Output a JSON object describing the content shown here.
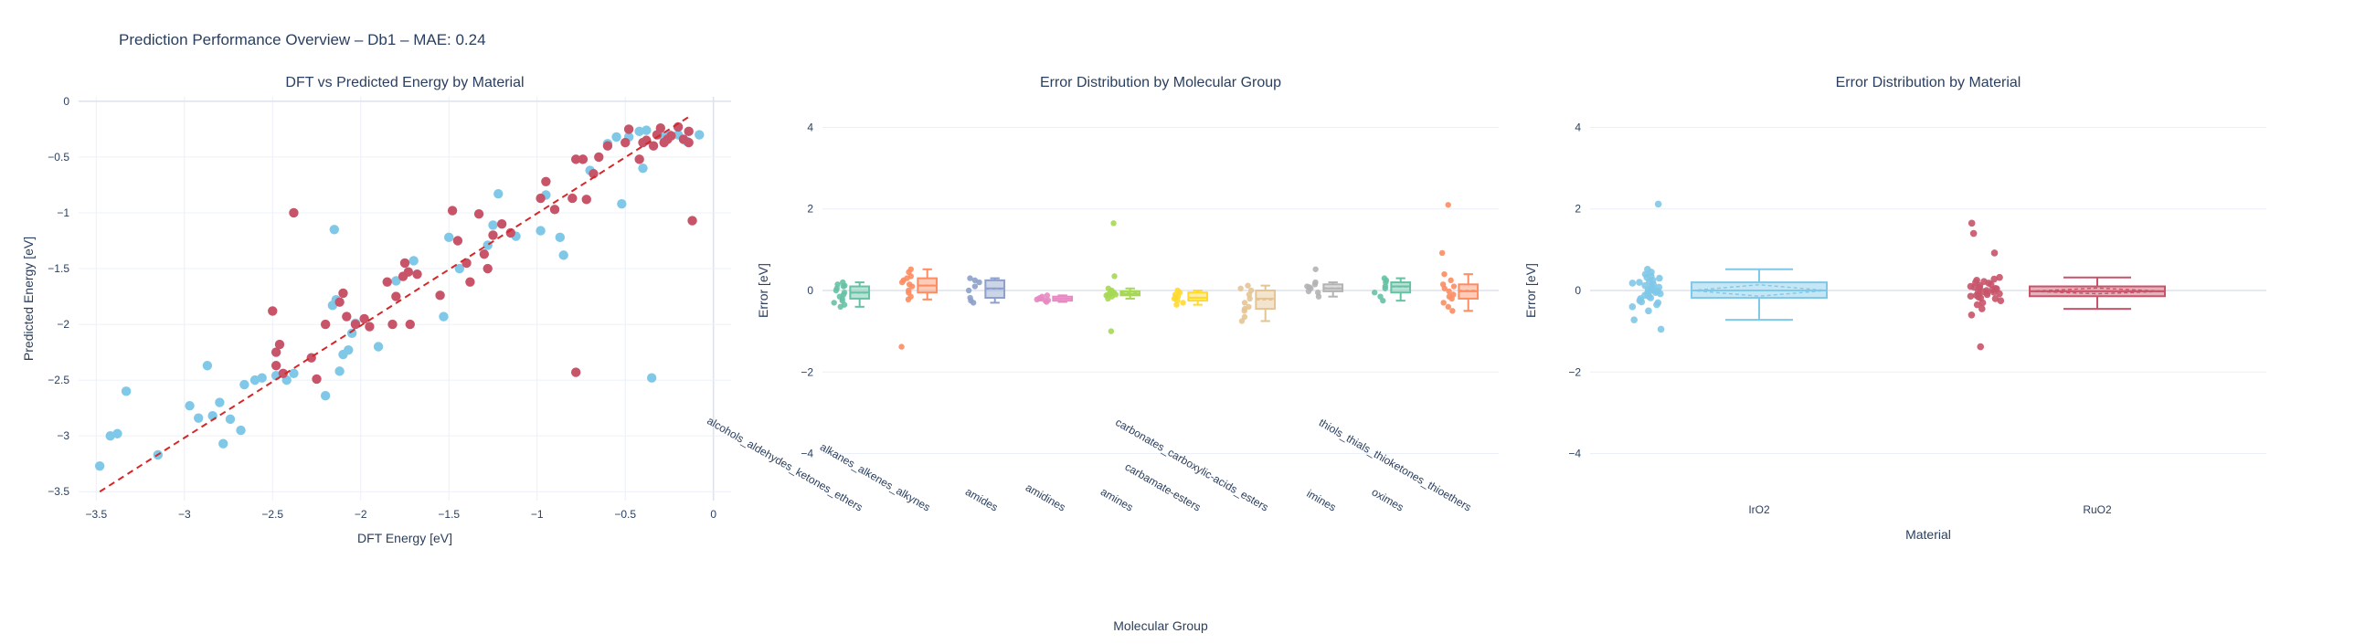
{
  "page_title": "Prediction Performance Overview – Db1 – MAE: 0.24",
  "chart_data": [
    {
      "id": "parity",
      "type": "scatter",
      "title": "DFT vs Predicted Energy by Material",
      "xlabel": "DFT Energy [eV]",
      "ylabel": "Predicted Energy [eV]",
      "xlim": [
        -3.6,
        0.1
      ],
      "ylim": [
        -3.58,
        0.04
      ],
      "xticks": [
        -3.5,
        -3,
        -2.5,
        -2,
        -1.5,
        -1,
        -0.5,
        0
      ],
      "xtick_labels": [
        "−3.5",
        "−3",
        "−2.5",
        "−2",
        "−1.5",
        "−1",
        "−0.5",
        "0"
      ],
      "yticks": [
        -3.5,
        -3,
        -2.5,
        -2,
        -1.5,
        -1,
        -0.5,
        0
      ],
      "ytick_labels": [
        "−3.5",
        "−3",
        "−2.5",
        "−2",
        "−1.5",
        "−1",
        "−0.5",
        "0"
      ],
      "grid": true,
      "reference_line": {
        "x": [
          -3.48,
          -0.13
        ],
        "y": [
          -3.5,
          -0.13
        ],
        "color": "#d62728",
        "style": "dashed"
      },
      "series": [
        {
          "color": "#7fc8e8",
          "points": [
            [
              -3.48,
              -3.27
            ],
            [
              -3.42,
              -3.0
            ],
            [
              -3.38,
              -2.98
            ],
            [
              -3.33,
              -2.6
            ],
            [
              -3.15,
              -3.17
            ],
            [
              -2.97,
              -2.73
            ],
            [
              -2.92,
              -2.84
            ],
            [
              -2.87,
              -2.37
            ],
            [
              -2.84,
              -2.82
            ],
            [
              -2.8,
              -2.7
            ],
            [
              -2.78,
              -3.07
            ],
            [
              -2.74,
              -2.85
            ],
            [
              -2.68,
              -2.95
            ],
            [
              -2.66,
              -2.54
            ],
            [
              -2.6,
              -2.5
            ],
            [
              -2.56,
              -2.48
            ],
            [
              -2.48,
              -2.46
            ],
            [
              -2.42,
              -2.5
            ],
            [
              -2.38,
              -2.44
            ],
            [
              -2.2,
              -2.64
            ],
            [
              -2.16,
              -1.83
            ],
            [
              -2.14,
              -1.78
            ],
            [
              -2.12,
              -2.42
            ],
            [
              -2.1,
              -2.27
            ],
            [
              -2.07,
              -2.23
            ],
            [
              -2.05,
              -2.08
            ],
            [
              -2.03,
              -1.99
            ],
            [
              -1.9,
              -2.2
            ],
            [
              -1.8,
              -1.61
            ],
            [
              -1.7,
              -1.43
            ],
            [
              -1.53,
              -1.93
            ],
            [
              -1.5,
              -1.22
            ],
            [
              -1.44,
              -1.5
            ],
            [
              -1.28,
              -1.29
            ],
            [
              -1.25,
              -1.11
            ],
            [
              -1.22,
              -0.83
            ],
            [
              -1.12,
              -1.21
            ],
            [
              -0.98,
              -1.16
            ],
            [
              -0.95,
              -0.84
            ],
            [
              -0.87,
              -1.22
            ],
            [
              -0.85,
              -1.38
            ],
            [
              -0.7,
              -0.62
            ],
            [
              -0.6,
              -0.38
            ],
            [
              -0.55,
              -0.32
            ],
            [
              -0.52,
              -0.92
            ],
            [
              -0.48,
              -0.32
            ],
            [
              -0.42,
              -0.27
            ],
            [
              -0.4,
              -0.6
            ],
            [
              -0.38,
              -0.26
            ],
            [
              -0.35,
              -2.48
            ],
            [
              -0.3,
              -0.3
            ],
            [
              -0.25,
              -0.3
            ],
            [
              -0.2,
              -0.3
            ],
            [
              -0.15,
              -0.36
            ],
            [
              -0.08,
              -0.3
            ],
            [
              -2.15,
              -1.15
            ]
          ]
        },
        {
          "color": "#c8546a",
          "points": [
            [
              -2.5,
              -1.88
            ],
            [
              -2.48,
              -2.25
            ],
            [
              -2.46,
              -2.18
            ],
            [
              -2.48,
              -2.37
            ],
            [
              -2.44,
              -2.44
            ],
            [
              -2.38,
              -1.0
            ],
            [
              -2.28,
              -2.3
            ],
            [
              -2.25,
              -2.49
            ],
            [
              -2.2,
              -2.0
            ],
            [
              -2.12,
              -1.8
            ],
            [
              -2.1,
              -1.72
            ],
            [
              -2.08,
              -1.93
            ],
            [
              -2.03,
              -2.0
            ],
            [
              -1.98,
              -1.95
            ],
            [
              -1.95,
              -2.02
            ],
            [
              -1.85,
              -1.62
            ],
            [
              -1.82,
              -2.0
            ],
            [
              -1.8,
              -1.75
            ],
            [
              -1.76,
              -1.57
            ],
            [
              -1.75,
              -1.45
            ],
            [
              -1.73,
              -1.53
            ],
            [
              -1.72,
              -2.0
            ],
            [
              -1.68,
              -1.55
            ],
            [
              -1.55,
              -1.74
            ],
            [
              -1.48,
              -0.98
            ],
            [
              -1.45,
              -1.25
            ],
            [
              -1.4,
              -1.45
            ],
            [
              -1.38,
              -1.62
            ],
            [
              -1.33,
              -1.01
            ],
            [
              -1.3,
              -1.37
            ],
            [
              -1.28,
              -1.5
            ],
            [
              -1.25,
              -1.2
            ],
            [
              -1.2,
              -1.1
            ],
            [
              -1.15,
              -1.18
            ],
            [
              -0.98,
              -0.87
            ],
            [
              -0.95,
              -0.72
            ],
            [
              -0.9,
              -0.97
            ],
            [
              -0.8,
              -0.87
            ],
            [
              -0.78,
              -0.52
            ],
            [
              -0.78,
              -2.43
            ],
            [
              -0.74,
              -0.52
            ],
            [
              -0.72,
              -0.88
            ],
            [
              -0.68,
              -0.65
            ],
            [
              -0.65,
              -0.5
            ],
            [
              -0.6,
              -0.4
            ],
            [
              -0.5,
              -0.37
            ],
            [
              -0.48,
              -0.25
            ],
            [
              -0.42,
              -0.52
            ],
            [
              -0.4,
              -0.37
            ],
            [
              -0.38,
              -0.35
            ],
            [
              -0.34,
              -0.4
            ],
            [
              -0.32,
              -0.3
            ],
            [
              -0.3,
              -0.24
            ],
            [
              -0.28,
              -0.37
            ],
            [
              -0.26,
              -0.34
            ],
            [
              -0.24,
              -0.31
            ],
            [
              -0.2,
              -0.23
            ],
            [
              -0.17,
              -0.34
            ],
            [
              -0.14,
              -0.37
            ],
            [
              -0.14,
              -0.27
            ],
            [
              -0.12,
              -1.07
            ]
          ]
        }
      ]
    },
    {
      "id": "by_group",
      "type": "box",
      "title": "Error Distribution by Molecular Group",
      "xlabel": "Molecular Group",
      "ylabel": "Error [eV]",
      "ylim": [
        -4.75,
        4.75
      ],
      "yticks": [
        -4,
        -2,
        0,
        2,
        4
      ],
      "ytick_labels": [
        "−4",
        "−2",
        "0",
        "2",
        "4"
      ],
      "grid": true,
      "categories": [
        "alcohols_aldehydes_ketones_ethers",
        "alkanes_alkenes_alkynes",
        "amides",
        "amidines",
        "amines",
        "carbamate-esters",
        "carbonates_carboxylic-acids_esters",
        "imines",
        "oximes",
        "thiols_thials_thioketones_thioethers"
      ],
      "colors": [
        "#66c2a5",
        "#fc8d62",
        "#8da0cb",
        "#e78ac3",
        "#a6d854",
        "#ffd92f",
        "#e5c494",
        "#b3b3b3",
        "#66c2a5",
        "#fc8d62"
      ],
      "boxes": [
        {
          "min": -0.4,
          "q1": -0.2,
          "median": -0.05,
          "q3": 0.1,
          "max": 0.2,
          "mean": -0.06,
          "outliers": [],
          "points": [
            -0.4,
            -0.35,
            -0.25,
            -0.2,
            -0.15,
            -0.1,
            -0.05,
            0.0,
            0.05,
            0.1,
            0.15,
            0.2,
            -0.3,
            0.12
          ]
        },
        {
          "min": -0.22,
          "q1": -0.05,
          "median": 0.12,
          "q3": 0.3,
          "max": 0.52,
          "mean": 0.13,
          "outliers": [
            -1.38
          ],
          "points": [
            -0.22,
            -0.15,
            -0.05,
            0.0,
            0.1,
            0.15,
            0.2,
            0.3,
            0.35,
            0.45,
            0.52,
            -1.38,
            0.25
          ]
        },
        {
          "min": -0.3,
          "q1": -0.18,
          "median": 0.05,
          "q3": 0.25,
          "max": 0.3,
          "mean": 0.04,
          "outliers": [],
          "points": [
            -0.3,
            -0.25,
            -0.18,
            0.0,
            0.1,
            0.2,
            0.25,
            0.3
          ]
        },
        {
          "min": -0.28,
          "q1": -0.25,
          "median": -0.2,
          "q3": -0.15,
          "max": -0.12,
          "mean": -0.2,
          "outliers": [],
          "points": [
            -0.28,
            -0.25,
            -0.22,
            -0.2,
            -0.18,
            -0.15,
            -0.12,
            -0.2,
            -0.24
          ]
        },
        {
          "min": -0.2,
          "q1": -0.12,
          "median": -0.08,
          "q3": -0.02,
          "max": 0.05,
          "mean": -0.06,
          "outliers": [
            1.65,
            0.35,
            -1.0
          ],
          "points": [
            -0.2,
            -0.15,
            -0.12,
            -0.1,
            -0.08,
            -0.05,
            -0.02,
            0.0,
            0.05,
            1.65,
            0.35,
            -1.0,
            -0.1
          ]
        },
        {
          "min": -0.35,
          "q1": -0.25,
          "median": -0.18,
          "q3": -0.05,
          "max": 0.0,
          "mean": -0.17,
          "outliers": [],
          "points": [
            -0.35,
            -0.3,
            -0.25,
            -0.2,
            -0.15,
            -0.1,
            -0.05,
            0.0,
            -0.18
          ]
        },
        {
          "min": -0.75,
          "q1": -0.45,
          "median": -0.2,
          "q3": 0.0,
          "max": 0.12,
          "mean": -0.23,
          "outliers": [],
          "points": [
            -0.75,
            -0.65,
            -0.5,
            -0.45,
            -0.3,
            -0.2,
            -0.1,
            0.0,
            0.05,
            0.12,
            -0.4
          ]
        },
        {
          "min": -0.15,
          "q1": -0.02,
          "median": 0.05,
          "q3": 0.15,
          "max": 0.2,
          "mean": 0.06,
          "outliers": [
            0.52
          ],
          "points": [
            -0.15,
            -0.05,
            -0.02,
            0.05,
            0.1,
            0.15,
            0.2,
            0.52,
            0.08
          ]
        },
        {
          "min": -0.25,
          "q1": -0.05,
          "median": 0.1,
          "q3": 0.2,
          "max": 0.3,
          "mean": 0.09,
          "outliers": [],
          "points": [
            -0.25,
            -0.15,
            -0.05,
            0.05,
            0.1,
            0.2,
            0.25,
            0.3
          ]
        },
        {
          "min": -0.5,
          "q1": -0.2,
          "median": -0.02,
          "q3": 0.15,
          "max": 0.4,
          "mean": 0.0,
          "outliers": [
            2.1,
            0.92
          ],
          "points": [
            -0.5,
            -0.4,
            -0.3,
            -0.2,
            -0.1,
            -0.02,
            0.05,
            0.1,
            0.15,
            0.25,
            0.4,
            2.1,
            0.92,
            -0.15
          ]
        }
      ]
    },
    {
      "id": "by_material",
      "type": "box",
      "title": "Error Distribution by Material",
      "xlabel": "Material",
      "ylabel": "Error [eV]",
      "ylim": [
        -4.75,
        4.75
      ],
      "yticks": [
        -4,
        -2,
        0,
        2,
        4
      ],
      "ytick_labels": [
        "−4",
        "−2",
        "0",
        "2",
        "4"
      ],
      "grid": true,
      "categories": [
        "IrO2",
        "RuO2"
      ],
      "colors": [
        "#7fc8e8",
        "#c8546a"
      ],
      "boxes": [
        {
          "min": -0.72,
          "q1": -0.18,
          "median": 0.0,
          "q3": 0.2,
          "max": 0.52,
          "mean": 0.0,
          "sd_low": -0.14,
          "sd_high": 0.14,
          "outliers": [
            2.12,
            -0.95
          ],
          "points": [
            2.12,
            0.52,
            0.45,
            0.4,
            0.35,
            0.3,
            0.25,
            0.2,
            0.18,
            0.15,
            0.1,
            0.08,
            0.05,
            0.02,
            0.0,
            0.0,
            -0.02,
            -0.05,
            -0.08,
            -0.1,
            -0.12,
            -0.15,
            -0.18,
            -0.2,
            -0.25,
            -0.3,
            -0.35,
            -0.4,
            -0.5,
            -0.72,
            -0.95,
            0.12,
            -0.06,
            0.22,
            -0.28,
            0.32
          ]
        },
        {
          "min": -0.45,
          "q1": -0.14,
          "median": -0.02,
          "q3": 0.1,
          "max": 0.32,
          "mean": -0.02,
          "sd_low": -0.08,
          "sd_high": 0.06,
          "outliers": [
            1.65,
            1.4,
            0.92,
            -1.38
          ],
          "points": [
            1.65,
            1.4,
            0.92,
            0.32,
            0.28,
            0.25,
            0.2,
            0.18,
            0.15,
            0.12,
            0.1,
            0.08,
            0.05,
            0.02,
            0.0,
            -0.02,
            -0.04,
            -0.06,
            -0.08,
            -0.1,
            -0.12,
            -0.14,
            -0.16,
            -0.2,
            -0.25,
            -0.3,
            -0.35,
            -0.45,
            -0.6,
            -1.38,
            0.04,
            -0.18,
            0.22,
            -0.1,
            0.07,
            -0.03
          ]
        }
      ]
    }
  ]
}
